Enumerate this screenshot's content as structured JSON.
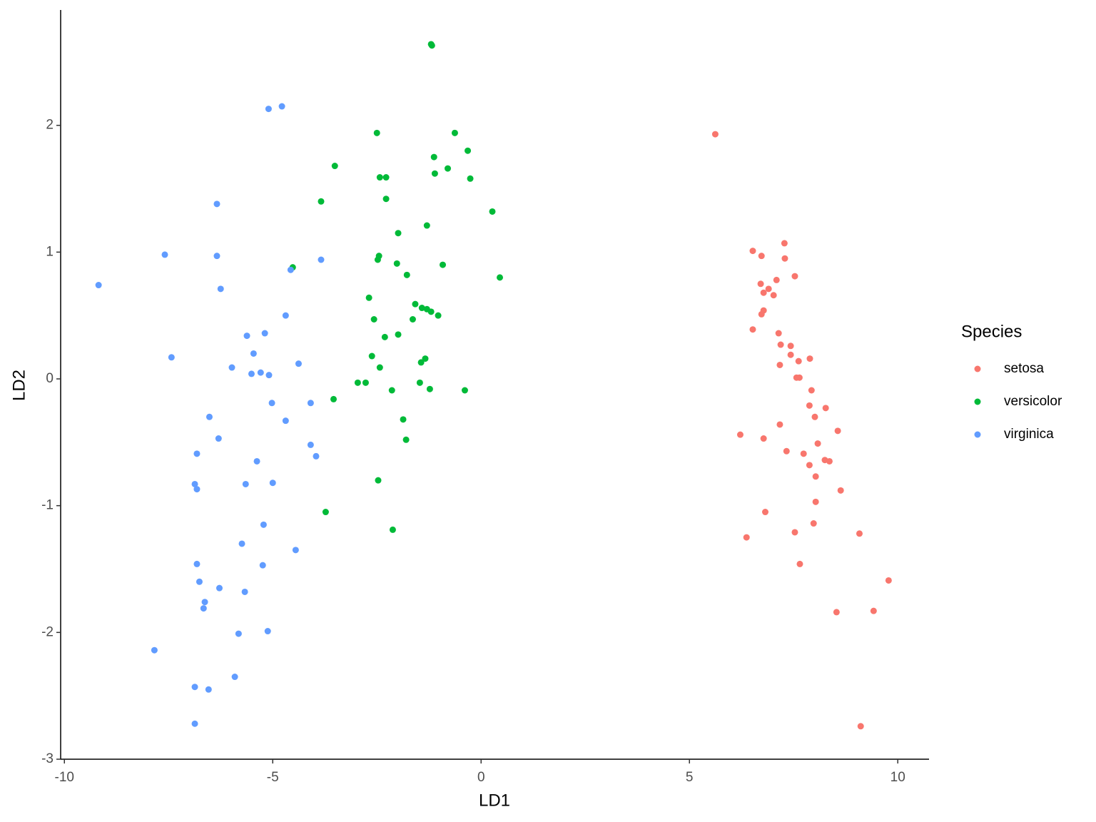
{
  "chart_data": {
    "type": "scatter",
    "x_label": "LD1",
    "y_label": "LD2",
    "legend_title": "Species",
    "legend_position": "right",
    "xlim": [
      -10.09,
      10.75
    ],
    "ylim": [
      -3.0,
      2.91
    ],
    "xticks": [
      -10,
      -5,
      0,
      5,
      10
    ],
    "yticks": [
      -3,
      -2,
      -1,
      0,
      1,
      2
    ],
    "grid": false,
    "series": [
      {
        "name": "setosa",
        "color": "#F8766D",
        "x": [
          5.62,
          7.28,
          6.52,
          6.73,
          7.29,
          7.53,
          7.09,
          6.71,
          6.9,
          6.78,
          7.02,
          6.78,
          6.73,
          6.52,
          7.14,
          7.19,
          7.43,
          7.43,
          7.89,
          7.62,
          7.17,
          7.57,
          7.64,
          7.93,
          7.88,
          8.27,
          8.01,
          8.56,
          6.22,
          6.78,
          7.17,
          8.08,
          7.33,
          7.74,
          8.25,
          8.36,
          7.88,
          8.03,
          8.63,
          8.03,
          6.82,
          7.98,
          7.53,
          9.08,
          6.37,
          7.65,
          9.78,
          8.53,
          9.42,
          9.11
        ],
        "values": [
          1.93,
          1.07,
          1.01,
          0.97,
          0.95,
          0.81,
          0.78,
          0.75,
          0.71,
          0.68,
          0.66,
          0.54,
          0.51,
          0.39,
          0.36,
          0.27,
          0.26,
          0.19,
          0.16,
          0.14,
          0.11,
          0.01,
          0.01,
          -0.09,
          -0.21,
          -0.23,
          -0.3,
          -0.41,
          -0.44,
          -0.47,
          -0.36,
          -0.51,
          -0.57,
          -0.59,
          -0.64,
          -0.65,
          -0.68,
          -0.77,
          -0.88,
          -0.97,
          -1.05,
          -1.14,
          -1.21,
          -1.22,
          -1.25,
          -1.46,
          -1.59,
          -1.84,
          -1.83,
          -2.74
        ]
      },
      {
        "name": "versicolor",
        "color": "#00BA38",
        "x": [
          -1.2,
          -1.18,
          -0.63,
          -2.5,
          -0.32,
          -3.51,
          -1.13,
          -0.8,
          -1.11,
          -0.26,
          -2.43,
          -2.28,
          -2.28,
          -3.84,
          0.27,
          -1.3,
          -1.99,
          -2.45,
          -2.48,
          -4.52,
          -2.02,
          -0.92,
          0.45,
          -1.78,
          -2.69,
          -1.58,
          -1.42,
          -1.3,
          -1.2,
          -1.03,
          -1.64,
          -2.57,
          -1.99,
          -2.31,
          -1.34,
          -1.44,
          -2.62,
          -2.43,
          -2.96,
          -2.77,
          -1.47,
          -2.14,
          -1.23,
          -0.39,
          -3.54,
          -1.87,
          -1.8,
          -2.47,
          -3.73,
          -2.12
        ],
        "values": [
          2.64,
          2.63,
          1.94,
          1.94,
          1.8,
          1.68,
          1.75,
          1.66,
          1.62,
          1.58,
          1.59,
          1.59,
          1.42,
          1.4,
          1.32,
          1.21,
          1.15,
          0.97,
          0.94,
          0.88,
          0.91,
          0.9,
          0.8,
          0.82,
          0.64,
          0.59,
          0.56,
          0.55,
          0.53,
          0.5,
          0.47,
          0.47,
          0.35,
          0.33,
          0.16,
          0.13,
          0.18,
          0.09,
          -0.03,
          -0.03,
          -0.03,
          -0.09,
          -0.08,
          -0.09,
          -0.16,
          -0.32,
          -0.48,
          -0.8,
          -1.05,
          -1.19
        ]
      },
      {
        "name": "virginica",
        "color": "#619CFF",
        "x": [
          -4.78,
          -5.1,
          -6.34,
          -7.59,
          -6.34,
          -3.84,
          -4.57,
          -9.18,
          -6.25,
          -4.69,
          -5.19,
          -5.62,
          -7.43,
          -5.46,
          -4.38,
          -5.98,
          -5.51,
          -5.29,
          -5.09,
          -5.02,
          -4.09,
          -6.52,
          -4.69,
          -6.3,
          -4.09,
          -6.82,
          -3.96,
          -5.38,
          -6.87,
          -5.65,
          -5.0,
          -6.82,
          -5.22,
          -5.74,
          -4.45,
          -6.82,
          -5.24,
          -6.76,
          -6.28,
          -5.67,
          -6.63,
          -6.66,
          -5.82,
          -5.12,
          -7.84,
          -5.91,
          -6.87,
          -6.54,
          -6.87
        ],
        "values": [
          2.15,
          2.13,
          1.38,
          0.98,
          0.97,
          0.94,
          0.86,
          0.74,
          0.71,
          0.5,
          0.36,
          0.34,
          0.17,
          0.2,
          0.12,
          0.09,
          0.04,
          0.05,
          0.03,
          -0.19,
          -0.19,
          -0.3,
          -0.33,
          -0.47,
          -0.52,
          -0.59,
          -0.61,
          -0.65,
          -0.83,
          -0.83,
          -0.82,
          -0.87,
          -1.15,
          -1.3,
          -1.35,
          -1.46,
          -1.47,
          -1.6,
          -1.65,
          -1.68,
          -1.76,
          -1.81,
          -2.01,
          -1.99,
          -2.14,
          -2.35,
          -2.43,
          -2.45,
          -2.72
        ]
      }
    ]
  }
}
